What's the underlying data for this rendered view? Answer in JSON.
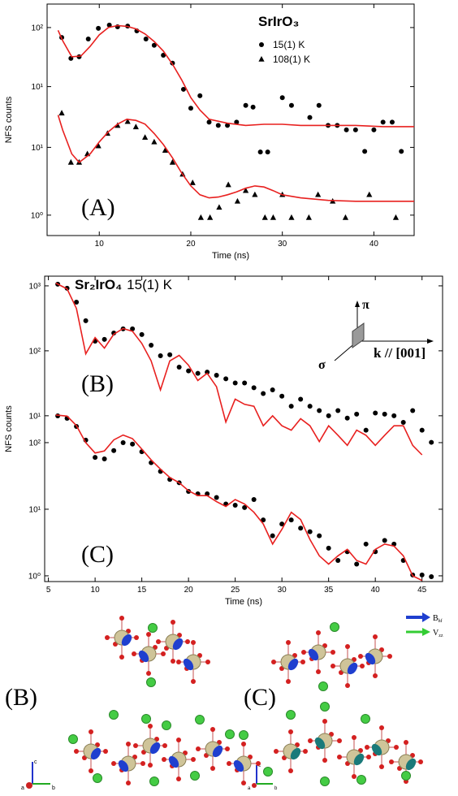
{
  "chart_data": [
    {
      "type": "scatter",
      "title": "SrIrO₃",
      "panel_label": "(A)",
      "x_label": "Time (ns)",
      "y_label": "NFS counts",
      "log_y": true,
      "xlim": [
        4.3,
        44.4
      ],
      "xticks": [
        10,
        20,
        30,
        40
      ],
      "ylim": [
        0.5,
        1300
      ],
      "yticks": [
        {
          "value": 1,
          "label": "10⁰"
        },
        {
          "value": 10,
          "label": "10¹"
        }
      ],
      "y2lim": [
        0.03,
        250
      ],
      "y2ticks": [
        {
          "value": 10,
          "label": "10¹"
        },
        {
          "value": 100,
          "label": "10²"
        }
      ],
      "series": [
        {
          "name": "15(1) K",
          "marker": "circle",
          "color": "#000000",
          "axis": "y2",
          "x": [
            5.9,
            6.9,
            7.8,
            8.8,
            9.9,
            11.1,
            12,
            13.1,
            14.1,
            15.1,
            16,
            17,
            18,
            19.2,
            20,
            21,
            22,
            23,
            24,
            25,
            26,
            26.8,
            27.6,
            28.4,
            30,
            31,
            33,
            34,
            35,
            36,
            37,
            38,
            39,
            40,
            41,
            42,
            43
          ],
          "values": [
            68,
            30,
            32,
            64,
            97,
            110,
            103,
            106,
            88,
            64,
            50,
            34,
            25,
            9,
            4.3,
            7,
            2.5,
            2.2,
            2.2,
            2.5,
            4.8,
            4.5,
            0.78,
            0.78,
            6.5,
            4.8,
            3,
            4.8,
            2.2,
            2.2,
            1.85,
            1.85,
            0.8,
            1.85,
            2.5,
            2.5,
            0.8
          ]
        },
        {
          "name": "108(1) K",
          "marker": "triangle",
          "color": "#000000",
          "x": [
            5.9,
            6.9,
            7.8,
            8.7,
            9.9,
            10.9,
            12,
            13.1,
            14,
            15,
            16,
            17.2,
            18,
            19.1,
            20.2,
            21.1,
            22.1,
            23.1,
            24.1,
            25.1,
            26,
            27,
            28.1,
            29,
            30,
            31,
            32.9,
            33.9,
            35.5,
            36.9,
            39.5,
            42.4
          ],
          "values": [
            32,
            6,
            6,
            8,
            10.5,
            16,
            21,
            24,
            20,
            14,
            12,
            9,
            6,
            4,
            3,
            0.92,
            0.92,
            1.3,
            2.8,
            1.6,
            2.3,
            2,
            0.92,
            0.92,
            2,
            0.92,
            0.92,
            2,
            1.6,
            0.92,
            2,
            0.92
          ]
        },
        {
          "marker": "line",
          "color": "#e8201f",
          "axis": "y2",
          "x": [
            5.5,
            6,
            7,
            8,
            9,
            10,
            11,
            12,
            13,
            14,
            15,
            16,
            17,
            18,
            19,
            20,
            21,
            22,
            24,
            26,
            28,
            30,
            32,
            35,
            38,
            41,
            44.4
          ],
          "values": [
            90,
            60,
            32,
            33,
            48,
            75,
            100,
            108,
            105,
            95,
            78,
            58,
            40,
            24,
            13,
            6.5,
            4,
            2.8,
            2.4,
            2.2,
            2.3,
            2.3,
            2.2,
            2.2,
            2.2,
            2.1,
            2.1
          ]
        },
        {
          "marker": "line",
          "color": "#e8201f",
          "x": [
            5.5,
            6,
            7,
            7.8,
            9,
            10,
            11,
            12,
            13,
            14,
            15,
            16,
            17,
            18,
            19,
            20,
            21,
            22,
            23,
            24,
            25,
            26,
            27,
            28,
            29,
            30,
            32,
            35,
            38,
            41,
            44.4
          ],
          "values": [
            30,
            18,
            8,
            6,
            8,
            12,
            17,
            22,
            26,
            25,
            22,
            16,
            11,
            7,
            4.2,
            2.7,
            2,
            1.8,
            1.85,
            2,
            2.2,
            2.5,
            2.7,
            2.6,
            2.3,
            2,
            1.8,
            1.65,
            1.6,
            1.6,
            1.6
          ]
        }
      ]
    },
    {
      "type": "scatter",
      "title": "Sr₂IrO₄",
      "subtitle": "15(1) K",
      "x_label": "Time (ns)",
      "y_label": "NFS counts",
      "log_y": true,
      "xlim": [
        4.6,
        47.2
      ],
      "xticks": [
        5,
        10,
        15,
        20,
        25,
        30,
        35,
        40,
        45
      ],
      "ylim": [
        0.82,
        31600
      ],
      "yticks": [
        {
          "value": 1,
          "label": "10⁰"
        },
        {
          "value": 10,
          "label": "10¹"
        },
        {
          "value": 100,
          "label": "10²"
        }
      ],
      "y2lim": [
        0.028,
        1410
      ],
      "y2ticks": [
        {
          "value": 10,
          "label": "10¹"
        },
        {
          "value": 100,
          "label": "10²"
        },
        {
          "value": 1000,
          "label": "10³"
        }
      ],
      "annotations": [
        "π",
        "σ",
        "k // [001]"
      ],
      "series": [
        {
          "label": "(B)",
          "marker": "circle",
          "color": "#000000",
          "axis": "y2",
          "x": [
            6,
            7,
            8,
            9,
            10,
            11,
            12,
            13,
            14,
            15,
            16,
            17,
            18,
            19,
            20,
            21,
            22,
            23,
            24,
            25,
            26,
            27,
            28,
            29,
            30,
            31,
            32,
            33,
            34,
            35,
            36,
            37,
            38,
            39,
            40,
            41,
            42,
            43,
            44,
            45,
            46
          ],
          "values": [
            1060,
            918,
            562,
            290,
            141,
            150,
            188,
            218,
            218,
            178,
            122,
            84,
            87,
            56,
            49,
            45,
            47,
            42,
            37,
            32,
            32,
            27,
            22,
            25,
            20,
            14,
            18,
            14,
            12,
            10,
            12,
            9.2,
            10.6,
            6,
            11,
            10.6,
            10,
            7.9,
            12,
            6,
            3.9
          ]
        },
        {
          "marker": "line",
          "color": "#e8201f",
          "axis": "y2",
          "x": [
            5.8,
            7,
            8,
            9,
            10,
            11,
            12,
            13,
            14,
            15,
            16,
            17,
            18,
            19,
            20,
            21,
            22,
            23,
            24,
            25,
            26,
            27,
            28,
            29,
            30,
            31,
            32,
            33,
            34,
            35,
            36,
            37,
            38,
            39,
            40,
            41,
            42,
            43,
            44,
            45
          ],
          "values": [
            1100,
            900,
            450,
            90,
            160,
            110,
            180,
            220,
            200,
            130,
            70,
            25,
            70,
            85,
            60,
            35,
            45,
            28,
            8,
            18,
            15,
            14,
            7,
            10,
            7,
            6,
            9,
            7,
            4,
            7,
            5,
            3.5,
            6,
            5,
            3.5,
            5,
            7,
            7,
            3.5,
            2.5
          ]
        },
        {
          "label": "(C)",
          "marker": "circle",
          "color": "#000000",
          "x": [
            6,
            7,
            8,
            9,
            10,
            11,
            12,
            13,
            14,
            15,
            16,
            17,
            18,
            19,
            20,
            21,
            22,
            23,
            24,
            25,
            26,
            27,
            28,
            29,
            30,
            31,
            32,
            33,
            34,
            35,
            36,
            37,
            38,
            39,
            40,
            41,
            42,
            43,
            44,
            45,
            46
          ],
          "values": [
            252,
            232,
            175,
            109,
            60,
            57,
            76,
            100,
            95,
            73,
            50,
            37,
            28,
            25,
            18.5,
            17,
            17,
            15,
            12,
            11.5,
            10.6,
            14,
            6.9,
            4,
            6,
            6.9,
            5.2,
            4.6,
            4,
            2.6,
            1.7,
            2.3,
            1.5,
            3,
            2.3,
            3.4,
            3,
            1.7,
            1.03,
            1.03,
            0.97
          ]
        },
        {
          "marker": "line",
          "color": "#e8201f",
          "x": [
            5.8,
            7,
            8,
            9,
            10,
            11,
            12,
            13,
            14,
            15,
            16,
            17,
            18,
            19,
            20,
            21,
            22,
            23,
            24,
            25,
            26,
            27,
            28,
            29,
            30,
            31,
            32,
            33,
            34,
            35,
            36,
            37,
            38,
            39,
            40,
            41,
            42,
            43,
            44,
            45
          ],
          "values": [
            260,
            250,
            180,
            100,
            70,
            75,
            110,
            130,
            115,
            80,
            55,
            40,
            30,
            25,
            19,
            16,
            16,
            13,
            11,
            14,
            12,
            9,
            6,
            3,
            5,
            9,
            7,
            3.5,
            2,
            1.5,
            2,
            2.5,
            1.7,
            1.5,
            2.5,
            3,
            2.8,
            2,
            1,
            0.85
          ]
        }
      ]
    }
  ],
  "structure": {
    "panel_labels": [
      "(B)",
      "(C)"
    ],
    "legend": [
      {
        "symbol": "B",
        "sub": "hf"
      },
      {
        "symbol": "V",
        "sub": "zz"
      }
    ],
    "axes": [
      "c",
      "a",
      "b"
    ]
  }
}
